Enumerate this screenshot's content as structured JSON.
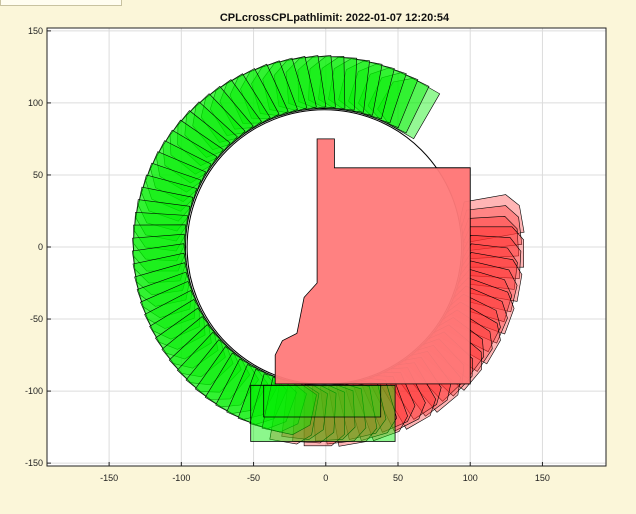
{
  "chart_data": {
    "type": "scatter",
    "title": "CPLcrossCPLpathlimit: 2022-01-07 12:20:54",
    "xlabel": "",
    "ylabel": "",
    "xlim": [
      -193,
      194
    ],
    "ylim": [
      -152,
      152
    ],
    "xticks": [
      -150,
      -100,
      -50,
      0,
      50,
      100,
      150
    ],
    "yticks": [
      -150,
      -100,
      -50,
      0,
      50,
      100,
      150
    ],
    "grid": true,
    "colors": {
      "green_fill": "#00ee00",
      "red_fill": "#ff2a2a",
      "pink_fill": "#ff7a7a",
      "background": "#fbf6d9",
      "axes": "#ffffff"
    },
    "inner_circle": {
      "center": [
        -1,
        0
      ],
      "radius": 95
    },
    "central_polygon": [
      [
        -6,
        75
      ],
      [
        6,
        75
      ],
      [
        6,
        55
      ],
      [
        100,
        55
      ],
      [
        100,
        -95
      ],
      [
        -35,
        -95
      ],
      [
        -35,
        -75
      ],
      [
        -30,
        -65
      ],
      [
        -20,
        -60
      ],
      [
        -15,
        -35
      ],
      [
        -6,
        -25
      ]
    ],
    "green_path": {
      "from_angle_deg": 60,
      "to_angle_deg": 258,
      "count": 52,
      "inner_radius": 96,
      "outer_radius": 132
    },
    "red_path": {
      "from_angle_deg": 10,
      "to_angle_deg": -100,
      "count": 34,
      "inner_radius": 96,
      "outer_radius": 138
    },
    "green_bottom_block": [
      [
        -52,
        -96
      ],
      [
        48,
        -96
      ],
      [
        48,
        -135
      ],
      [
        -52,
        -135
      ]
    ],
    "green_inner_block": [
      [
        -43,
        -96
      ],
      [
        38,
        -96
      ],
      [
        38,
        -118
      ],
      [
        -43,
        -118
      ]
    ]
  }
}
